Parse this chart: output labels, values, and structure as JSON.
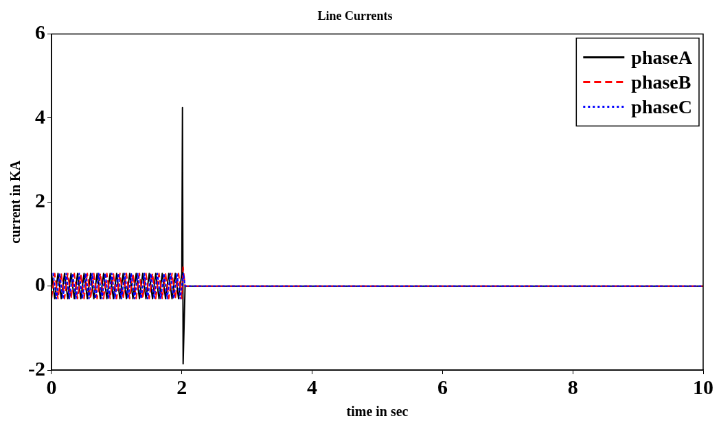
{
  "chart_data": {
    "type": "line",
    "title": "Line Currents",
    "xlabel": "time in sec",
    "ylabel": "current in KA",
    "xlim": [
      0,
      10
    ],
    "xticks": [
      0,
      2,
      4,
      6,
      8,
      10
    ],
    "ylim": [
      -2,
      6
    ],
    "yticks": [
      -2,
      0,
      2,
      4,
      6
    ],
    "grid": false,
    "legend": "top right",
    "marker": "none",
    "series": [
      {
        "name": "phaseA",
        "color": "#000000",
        "line_style": "solid",
        "x": [
          0,
          0.05,
          0.1,
          0.15,
          0.2,
          0.25,
          0.3,
          0.35,
          0.4,
          0.45,
          0.5,
          0.55,
          0.6,
          0.65,
          0.7,
          0.75,
          0.8,
          0.85,
          0.9,
          0.95,
          1,
          1.05,
          1.1,
          1.15,
          1.2,
          1.25,
          1.3,
          1.35,
          1.4,
          1.45,
          1.5,
          1.55,
          1.6,
          1.65,
          1.7,
          1.75,
          1.8,
          1.85,
          1.9,
          1.95,
          2,
          2.01,
          2.02,
          2.05,
          10
        ],
        "values": [
          0.3,
          -0.3,
          0.3,
          -0.3,
          0.3,
          -0.3,
          0.3,
          -0.3,
          0.3,
          -0.3,
          0.3,
          -0.3,
          0.3,
          -0.3,
          0.3,
          -0.3,
          0.3,
          -0.3,
          0.3,
          -0.3,
          0.3,
          -0.3,
          0.3,
          -0.3,
          0.3,
          -0.3,
          0.3,
          -0.3,
          0.3,
          -0.3,
          0.3,
          -0.3,
          0.3,
          -0.3,
          0.3,
          -0.3,
          0.3,
          -0.3,
          0.3,
          -0.3,
          0.3,
          4.25,
          -1.85,
          0,
          0
        ]
      },
      {
        "name": "phaseB",
        "color": "#ff0000",
        "line_style": "dashed",
        "x": [
          0,
          0.05,
          0.1,
          0.15,
          0.2,
          0.25,
          0.3,
          0.35,
          0.4,
          0.45,
          0.5,
          0.55,
          0.6,
          0.65,
          0.7,
          0.75,
          0.8,
          0.85,
          0.9,
          0.95,
          1,
          1.05,
          1.1,
          1.15,
          1.2,
          1.25,
          1.3,
          1.35,
          1.4,
          1.45,
          1.5,
          1.55,
          1.6,
          1.65,
          1.7,
          1.75,
          1.8,
          1.85,
          1.9,
          1.95,
          2,
          2.02,
          2.05,
          10
        ],
        "values": [
          -0.3,
          0.3,
          -0.3,
          0.3,
          -0.3,
          0.3,
          -0.3,
          0.3,
          -0.3,
          0.3,
          -0.3,
          0.3,
          -0.3,
          0.3,
          -0.3,
          0.3,
          -0.3,
          0.3,
          -0.3,
          0.3,
          -0.3,
          0.3,
          -0.3,
          0.3,
          -0.3,
          0.3,
          -0.3,
          0.3,
          -0.3,
          0.3,
          -0.3,
          0.3,
          -0.3,
          0.3,
          -0.3,
          0.3,
          -0.3,
          0.3,
          -0.3,
          0.3,
          -0.3,
          0.45,
          0,
          0
        ]
      },
      {
        "name": "phaseC",
        "color": "#0000ff",
        "line_style": "dotted",
        "x": [
          0.025,
          0.075,
          0.125,
          0.175,
          0.225,
          0.275,
          0.325,
          0.375,
          0.425,
          0.475,
          0.525,
          0.575,
          0.625,
          0.675,
          0.725,
          0.775,
          0.825,
          0.875,
          0.925,
          0.975,
          1.025,
          1.075,
          1.125,
          1.175,
          1.225,
          1.275,
          1.325,
          1.375,
          1.425,
          1.475,
          1.525,
          1.575,
          1.625,
          1.675,
          1.725,
          1.775,
          1.825,
          1.875,
          1.925,
          1.975,
          2.025,
          2.05,
          10
        ],
        "values": [
          0.3,
          -0.3,
          0.3,
          -0.3,
          0.3,
          -0.3,
          0.3,
          -0.3,
          0.3,
          -0.3,
          0.3,
          -0.3,
          0.3,
          -0.3,
          0.3,
          -0.3,
          0.3,
          -0.3,
          0.3,
          -0.3,
          0.3,
          -0.3,
          0.3,
          -0.3,
          0.3,
          -0.3,
          0.3,
          -0.3,
          0.3,
          -0.3,
          0.3,
          -0.3,
          0.3,
          -0.3,
          0.3,
          -0.3,
          0.3,
          -0.3,
          0.3,
          -0.3,
          0.3,
          0,
          0
        ]
      }
    ]
  }
}
